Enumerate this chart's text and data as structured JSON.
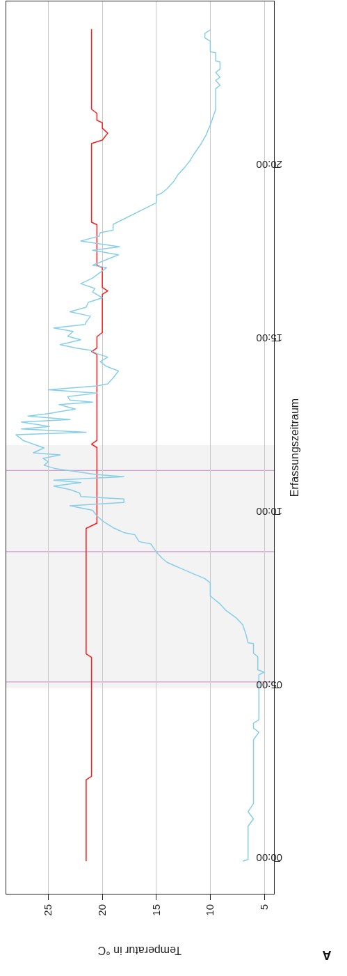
{
  "chart_data": {
    "type": "line",
    "ylabel": "Erfassungszeitraum",
    "xlabel": "Temperatur in °C",
    "ylim": [
      -0.94,
      24.8
    ],
    "xlim": [
      28.9,
      4.1
    ],
    "yticks": [
      {
        "value": 0,
        "label": "00:00"
      },
      {
        "value": 5,
        "label": "05:00"
      },
      {
        "value": 10,
        "label": "10:00"
      },
      {
        "value": 15,
        "label": "15:00"
      },
      {
        "value": 20,
        "label": "20:00"
      }
    ],
    "xticks": [
      25,
      20,
      15,
      10,
      5
    ],
    "grid": "x",
    "marker": "none",
    "line_style": "solid",
    "series": [
      {
        "color": "#ff1a1a",
        "values": [
          0,
          2.35,
          2.45,
          5.88,
          5.98,
          9.6,
          9.75,
          11.93,
          12.03,
          12.14,
          14.62,
          14.7,
          14.8,
          15.13,
          15.25,
          15.58,
          15.68,
          16.35,
          16.45,
          16.55,
          17.12,
          17.19,
          18.36,
          18.43,
          20.7,
          20.8,
          21.0,
          21.14,
          21.3,
          21.37,
          21.57,
          21.69,
          24.0
        ],
        "x": [
          21.5,
          21.5,
          21.0,
          21.0,
          21.5,
          21.5,
          20.5,
          20.5,
          21.0,
          20.5,
          20.5,
          21.0,
          20.5,
          20.5,
          20.0,
          20.0,
          20.0,
          20.0,
          19.5,
          20.0,
          20.0,
          20.5,
          20.5,
          21.0,
          21.0,
          20.0,
          19.5,
          20.0,
          20.0,
          20.5,
          20.5,
          21.0,
          21.0
        ]
      },
      {
        "color": "#87ceeb",
        "values": [
          0,
          0.05,
          1.01,
          1.22,
          1.43,
          1.66,
          3.5,
          3.72,
          3.84,
          3.98,
          4.08,
          5.38,
          5.45,
          5.52,
          5.9,
          6.0,
          6.28,
          6.3,
          6.55,
          6.82,
          7.02,
          7.22,
          7.42,
          7.65,
          8.03,
          8.15,
          8.28,
          8.62,
          8.75,
          8.92,
          9.15,
          9.22,
          9.42,
          9.48,
          9.62,
          9.82,
          9.96,
          10.12,
          10.25,
          10.35,
          10.45,
          10.52,
          10.62,
          10.72,
          10.82,
          10.92,
          10.99,
          11.09,
          11.15,
          11.32,
          11.42,
          11.52,
          11.62,
          11.72,
          11.78,
          11.92,
          12.03,
          12.13,
          12.3,
          12.37,
          12.47,
          12.54,
          12.67,
          12.74,
          12.84,
          12.91,
          12.97,
          13.04,
          13.17,
          13.24,
          13.3,
          13.4,
          13.5,
          13.6,
          13.71,
          13.77,
          13.94,
          14.14,
          14.27,
          14.41,
          14.54,
          14.64,
          14.74,
          14.8,
          14.9,
          15.04,
          15.14,
          15.28,
          15.38,
          15.48,
          15.55,
          15.72,
          15.85,
          15.98,
          16.12,
          16.25,
          16.42,
          16.52,
          16.66,
          16.82,
          17.12,
          17.19,
          17.49,
          17.62,
          17.72,
          17.89,
          18.03,
          18.13,
          18.2,
          18.37,
          18.99,
          19.2,
          19.27,
          19.4,
          19.6,
          19.8,
          20.0,
          20.2,
          20.4,
          20.67,
          20.94,
          21.24,
          21.68,
          22.28,
          22.38,
          22.52,
          22.61,
          22.75,
          22.85,
          23.05,
          23.08,
          23.32,
          23.35,
          23.65,
          23.75,
          23.88,
          23.98
        ],
        "x": [
          7.0,
          6.5,
          6.5,
          6.0,
          6.5,
          6.0,
          6.0,
          5.5,
          6.0,
          6.0,
          5.5,
          5.5,
          5.0,
          5.6,
          5.6,
          6.0,
          6.0,
          6.5,
          6.7,
          7.0,
          7.6,
          8.5,
          9.1,
          10.0,
          10.0,
          10.5,
          11.5,
          14.0,
          14.5,
          15.0,
          15.5,
          16.6,
          17.0,
          18.0,
          19.0,
          20.0,
          20.5,
          20.9,
          23.0,
          18.0,
          18.0,
          22.0,
          22.1,
          23.0,
          24.5,
          22.0,
          24.5,
          18.0,
          20.5,
          24.3,
          25.4,
          25.0,
          25.5,
          23.9,
          26.4,
          25.4,
          26.4,
          27.3,
          28.0,
          21.5,
          27.5,
          24.9,
          27.5,
          23.0,
          26.9,
          25.0,
          23.9,
          22.5,
          24.0,
          20.9,
          23.0,
          23.2,
          20.5,
          25.0,
          20.5,
          19.5,
          19.0,
          18.5,
          19.6,
          20.2,
          19.5,
          20.5,
          21.1,
          22.4,
          23.9,
          22.0,
          23.2,
          22.7,
          24.5,
          21.6,
          21.5,
          21.1,
          23.0,
          21.5,
          21.3,
          20.0,
          20.9,
          20.7,
          22.0,
          20.9,
          19.6,
          20.9,
          18.5,
          20.9,
          18.4,
          22.0,
          20.3,
          20.2,
          19.0,
          19.0,
          15.0,
          15.0,
          14.5,
          14.0,
          13.4,
          13.0,
          12.4,
          11.9,
          11.5,
          10.9,
          10.4,
          10.0,
          9.5,
          9.5,
          9.1,
          9.5,
          9.1,
          9.5,
          9.1,
          9.1,
          9.5,
          9.5,
          10.0,
          10.0,
          10.5,
          10.5,
          10.0
        ]
      }
    ],
    "bands": [
      {
        "axis": "y",
        "from": 5.0,
        "to": 12.0,
        "color": "#f2f3f2"
      }
    ],
    "ref_lines": [
      {
        "axis": "y",
        "value": 5.17,
        "color": "#d49bd0"
      },
      {
        "axis": "y",
        "value": 8.93,
        "color": "#d49bd0"
      },
      {
        "axis": "y",
        "value": 11.27,
        "color": "#d49bd0"
      }
    ],
    "annotations": [
      "A"
    ]
  }
}
